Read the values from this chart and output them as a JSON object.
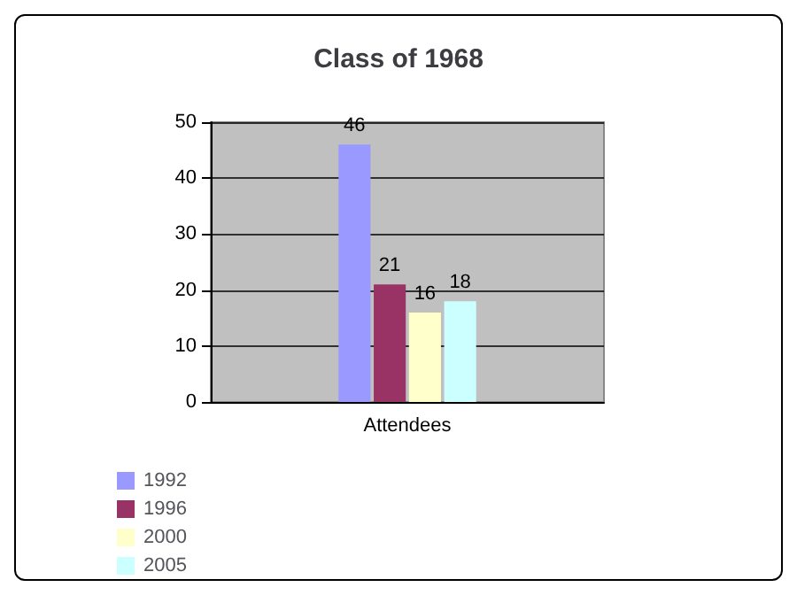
{
  "chart_data": {
    "type": "bar",
    "title": "Class of 1968",
    "categories": [
      "Attendees"
    ],
    "series": [
      {
        "name": "1992",
        "color": "#9999ff",
        "values": [
          46
        ]
      },
      {
        "name": "1996",
        "color": "#993366",
        "values": [
          21
        ]
      },
      {
        "name": "2000",
        "color": "#ffffcc",
        "values": [
          16
        ]
      },
      {
        "name": "2005",
        "color": "#ccffff",
        "values": [
          18
        ]
      }
    ],
    "ylim": [
      0,
      50
    ],
    "yticks": [
      0,
      10,
      20,
      30,
      40,
      50
    ],
    "grid": "y",
    "legend": "bottom left",
    "data_labels": true
  }
}
